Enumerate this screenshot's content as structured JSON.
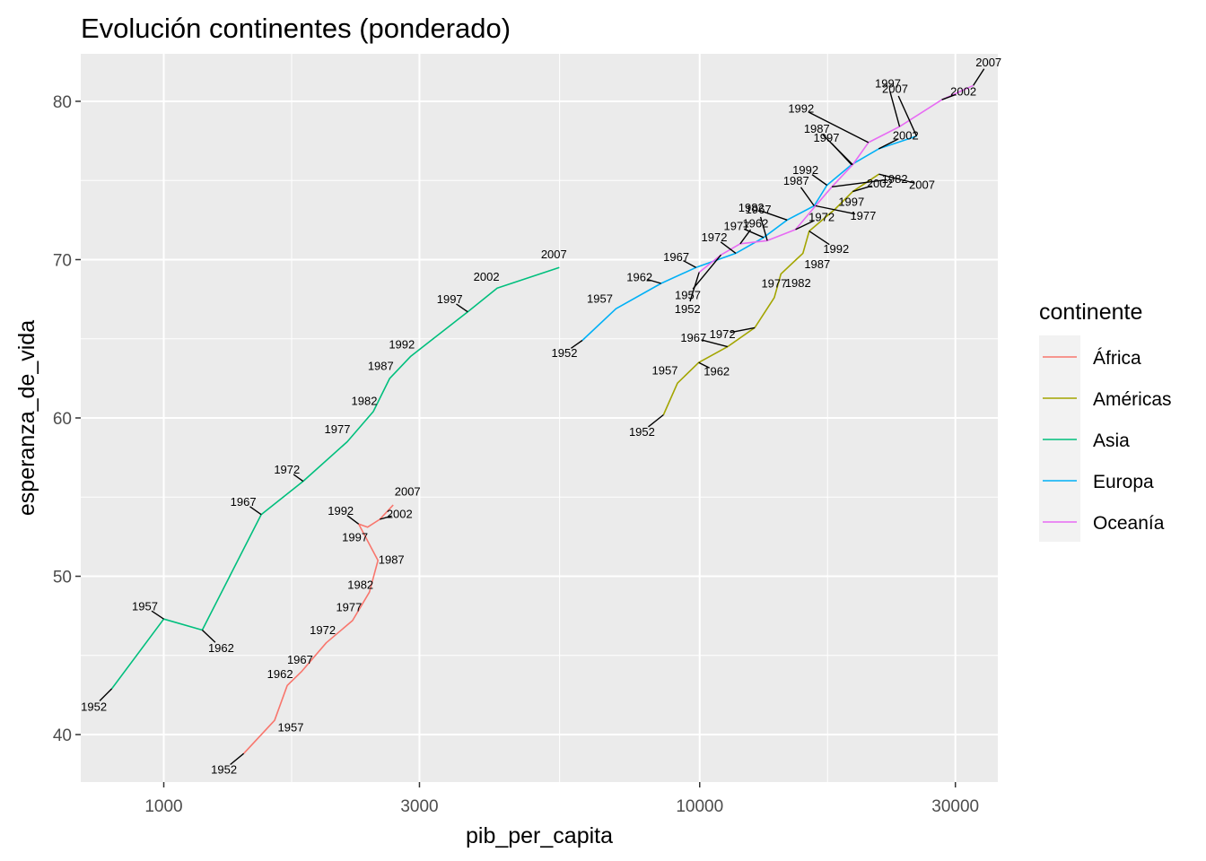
{
  "chart_data": {
    "type": "line",
    "title": "Evolución continentes (ponderado)",
    "xlabel": "pib_per_capita",
    "ylabel": "esperanza_de_vida",
    "x_scale": "log10",
    "xlim": [
      700,
      36000
    ],
    "ylim": [
      37,
      83
    ],
    "x_ticks": [
      1000,
      3000,
      10000,
      30000
    ],
    "x_tick_labels": [
      "1000",
      "3000",
      "10000",
      "30000"
    ],
    "y_ticks": [
      40,
      50,
      60,
      70,
      80
    ],
    "y_tick_labels": [
      "40",
      "50",
      "60",
      "70",
      "80"
    ],
    "grid": true,
    "legend": {
      "title": "continente",
      "position": "right"
    },
    "series": [
      {
        "name": "África",
        "color": "#F8766D",
        "points": [
          {
            "year": "1952",
            "x": 1410,
            "y": 38.8
          },
          {
            "year": "1957",
            "x": 1610,
            "y": 40.9
          },
          {
            "year": "1962",
            "x": 1700,
            "y": 43.1
          },
          {
            "year": "1967",
            "x": 1810,
            "y": 44.0
          },
          {
            "year": "1972",
            "x": 2010,
            "y": 45.8
          },
          {
            "year": "1977",
            "x": 2250,
            "y": 47.2
          },
          {
            "year": "1982",
            "x": 2420,
            "y": 49.0
          },
          {
            "year": "1987",
            "x": 2510,
            "y": 51.0
          },
          {
            "year": "1992",
            "x": 2310,
            "y": 53.3
          },
          {
            "year": "1997",
            "x": 2400,
            "y": 53.1
          },
          {
            "year": "2002",
            "x": 2530,
            "y": 53.6
          },
          {
            "year": "2007",
            "x": 2680,
            "y": 54.5
          }
        ]
      },
      {
        "name": "Américas",
        "color": "#A3A500",
        "points": [
          {
            "year": "1952",
            "x": 8560,
            "y": 60.2
          },
          {
            "year": "1957",
            "x": 9090,
            "y": 62.2
          },
          {
            "year": "1962",
            "x": 9960,
            "y": 63.5
          },
          {
            "year": "1967",
            "x": 11270,
            "y": 64.5
          },
          {
            "year": "1972",
            "x": 12670,
            "y": 65.7
          },
          {
            "year": "1977",
            "x": 13780,
            "y": 67.6
          },
          {
            "year": "1982",
            "x": 14180,
            "y": 69.1
          },
          {
            "year": "1987",
            "x": 15580,
            "y": 70.4
          },
          {
            "year": "1992",
            "x": 16010,
            "y": 71.8
          },
          {
            "year": "1997",
            "x": 17900,
            "y": 73.2
          },
          {
            "year": "2002",
            "x": 19300,
            "y": 74.3
          },
          {
            "year": "2007",
            "x": 21600,
            "y": 75.4
          }
        ]
      },
      {
        "name": "Asia",
        "color": "#00BF7D",
        "points": [
          {
            "year": "1952",
            "x": 800,
            "y": 42.9
          },
          {
            "year": "1957",
            "x": 1000,
            "y": 47.3
          },
          {
            "year": "1962",
            "x": 1180,
            "y": 46.6
          },
          {
            "year": "1967",
            "x": 1520,
            "y": 53.9
          },
          {
            "year": "1972",
            "x": 1820,
            "y": 56.0
          },
          {
            "year": "1977",
            "x": 2200,
            "y": 58.5
          },
          {
            "year": "1982",
            "x": 2460,
            "y": 60.4
          },
          {
            "year": "1987",
            "x": 2640,
            "y": 62.5
          },
          {
            "year": "1992",
            "x": 2890,
            "y": 63.9
          },
          {
            "year": "1997",
            "x": 3690,
            "y": 66.7
          },
          {
            "year": "2002",
            "x": 4190,
            "y": 68.2
          },
          {
            "year": "2007",
            "x": 5470,
            "y": 69.5
          }
        ]
      },
      {
        "name": "Europa",
        "color": "#00B0F6",
        "points": [
          {
            "year": "1952",
            "x": 6040,
            "y": 64.9
          },
          {
            "year": "1957",
            "x": 6980,
            "y": 66.9
          },
          {
            "year": "1962",
            "x": 8470,
            "y": 68.5
          },
          {
            "year": "1967",
            "x": 9840,
            "y": 69.5
          },
          {
            "year": "1972",
            "x": 11680,
            "y": 70.4
          },
          {
            "year": "1977",
            "x": 13160,
            "y": 71.4
          },
          {
            "year": "1982",
            "x": 14560,
            "y": 72.5
          },
          {
            "year": "1987",
            "x": 16350,
            "y": 73.4
          },
          {
            "year": "1992",
            "x": 17280,
            "y": 74.7
          },
          {
            "year": "1997",
            "x": 19200,
            "y": 76.0
          },
          {
            "year": "2002",
            "x": 21580,
            "y": 77.0
          },
          {
            "year": "2007",
            "x": 25400,
            "y": 77.8
          }
        ]
      },
      {
        "name": "Oceanía",
        "color": "#E76BF3",
        "points": [
          {
            "year": "1952",
            "x": 9980,
            "y": 69.2
          },
          {
            "year": "1957",
            "x": 10960,
            "y": 70.3
          },
          {
            "year": "1962",
            "x": 11900,
            "y": 71.0
          },
          {
            "year": "1967",
            "x": 13370,
            "y": 71.2
          },
          {
            "year": "1972",
            "x": 15100,
            "y": 71.9
          },
          {
            "year": "1977",
            "x": 16450,
            "y": 73.4
          },
          {
            "year": "1982",
            "x": 17650,
            "y": 74.6
          },
          {
            "year": "1987",
            "x": 19300,
            "y": 76.0
          },
          {
            "year": "1992",
            "x": 20650,
            "y": 77.4
          },
          {
            "year": "1997",
            "x": 23600,
            "y": 78.4
          },
          {
            "year": "2002",
            "x": 28300,
            "y": 80.1
          },
          {
            "year": "2007",
            "x": 32400,
            "y": 81.0
          }
        ]
      }
    ]
  }
}
